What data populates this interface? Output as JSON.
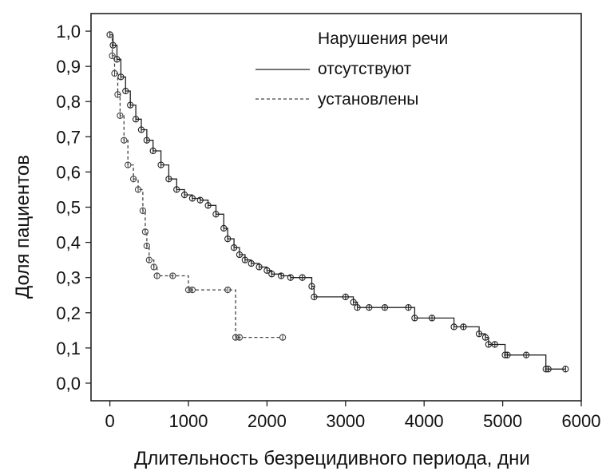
{
  "chart_data": {
    "type": "line",
    "subtype": "kaplan-meier step curves with censor markers",
    "xlabel": "Длительность безрецидивного периода, дни",
    "ylabel": "Доля пациентов",
    "xlim": [
      -240,
      6000
    ],
    "ylim": [
      -0.05,
      1.05
    ],
    "x_ticks": [
      0,
      1000,
      2000,
      3000,
      4000,
      5000,
      6000
    ],
    "y_ticks": [
      0.0,
      0.1,
      0.2,
      0.3,
      0.4,
      0.5,
      0.6,
      0.7,
      0.8,
      0.9,
      1.0
    ],
    "x_tick_labels": [
      "0",
      "1000",
      "2000",
      "3000",
      "4000",
      "5000",
      "6000"
    ],
    "y_tick_labels": [
      "0,0",
      "0,1",
      "0,2",
      "0,3",
      "0,4",
      "0,5",
      "0,6",
      "0,7",
      "0,8",
      "0,9",
      "1,0"
    ],
    "grid": false,
    "legend": {
      "title": "Нарушения речи",
      "placement": "top-right",
      "entries": [
        {
          "label": "отсутствуют",
          "style": "solid"
        },
        {
          "label": "установлены",
          "style": "dashed"
        }
      ]
    },
    "series": [
      {
        "name": "отсутствуют",
        "style": "solid",
        "color": "#222222",
        "x": [
          0,
          40,
          90,
          140,
          200,
          260,
          330,
          400,
          470,
          550,
          650,
          750,
          850,
          950,
          1050,
          1150,
          1250,
          1350,
          1450,
          1500,
          1580,
          1650,
          1720,
          1800,
          1900,
          2000,
          2060,
          2180,
          2300,
          2450,
          2570,
          2600,
          3000,
          3100,
          3150,
          3300,
          3500,
          3800,
          3880,
          4100,
          4380,
          4500,
          4700,
          4780,
          4820,
          4900,
          5030,
          5060,
          5300,
          5550,
          5580,
          5800
        ],
        "y": [
          0.99,
          0.96,
          0.92,
          0.87,
          0.83,
          0.79,
          0.75,
          0.72,
          0.69,
          0.66,
          0.62,
          0.58,
          0.55,
          0.535,
          0.525,
          0.52,
          0.505,
          0.48,
          0.44,
          0.41,
          0.385,
          0.365,
          0.35,
          0.34,
          0.33,
          0.32,
          0.31,
          0.305,
          0.3,
          0.3,
          0.275,
          0.245,
          0.245,
          0.23,
          0.215,
          0.215,
          0.215,
          0.215,
          0.185,
          0.185,
          0.16,
          0.16,
          0.14,
          0.13,
          0.11,
          0.11,
          0.08,
          0.08,
          0.08,
          0.04,
          0.04,
          0.04
        ]
      },
      {
        "name": "установлены",
        "style": "dashed",
        "color": "#444444",
        "x": [
          0,
          30,
          60,
          100,
          130,
          180,
          230,
          300,
          360,
          420,
          450,
          470,
          500,
          560,
          600,
          800,
          1000,
          1050,
          1500,
          1600,
          1650,
          2200
        ],
        "y": [
          0.99,
          0.93,
          0.88,
          0.82,
          0.76,
          0.69,
          0.62,
          0.58,
          0.55,
          0.49,
          0.43,
          0.39,
          0.35,
          0.33,
          0.305,
          0.305,
          0.265,
          0.265,
          0.265,
          0.13,
          0.13,
          0.13
        ]
      }
    ]
  }
}
